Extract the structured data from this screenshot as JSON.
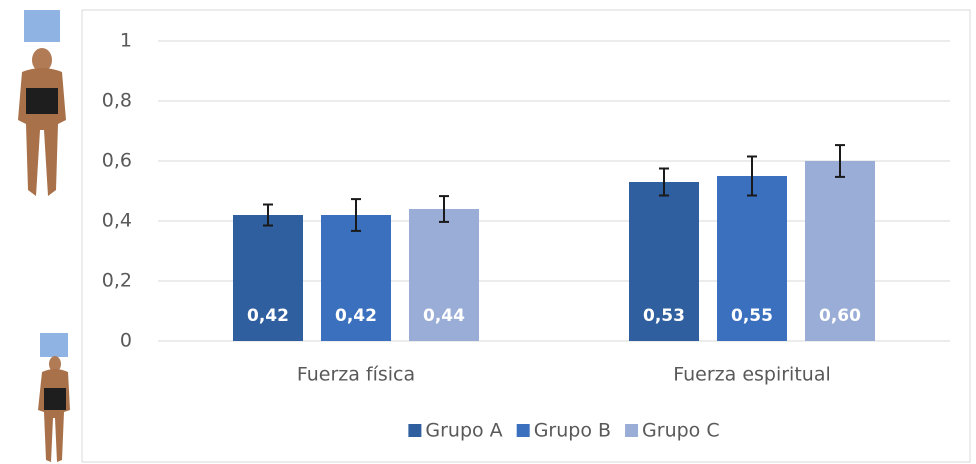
{
  "chart_data": {
    "type": "bar",
    "categories": [
      "Fuerza física",
      "Fuerza espiritual"
    ],
    "series": [
      {
        "name": "Grupo A",
        "color": "#2f5f9f",
        "values": [
          0.42,
          0.53
        ],
        "value_labels": [
          "0,42",
          "0,53"
        ],
        "errors": [
          0.035,
          0.045
        ]
      },
      {
        "name": "Grupo B",
        "color": "#3a70bd",
        "values": [
          0.42,
          0.55
        ],
        "value_labels": [
          "0,42",
          "0,55"
        ],
        "errors": [
          0.053,
          0.065
        ]
      },
      {
        "name": "Grupo C",
        "color": "#9aadd6",
        "values": [
          0.44,
          0.6
        ],
        "value_labels": [
          "0,44",
          "0,60"
        ],
        "errors": [
          0.043,
          0.053
        ]
      }
    ],
    "ylim": [
      0,
      1
    ],
    "yticks": [
      {
        "value": 0,
        "label": "0"
      },
      {
        "value": 0.2,
        "label": "0,2"
      },
      {
        "value": 0.4,
        "label": "0,4"
      },
      {
        "value": 0.6,
        "label": "0,6"
      },
      {
        "value": 0.8,
        "label": "0,8"
      },
      {
        "value": 1,
        "label": "1"
      }
    ],
    "grid": true,
    "legend": "bottom"
  }
}
